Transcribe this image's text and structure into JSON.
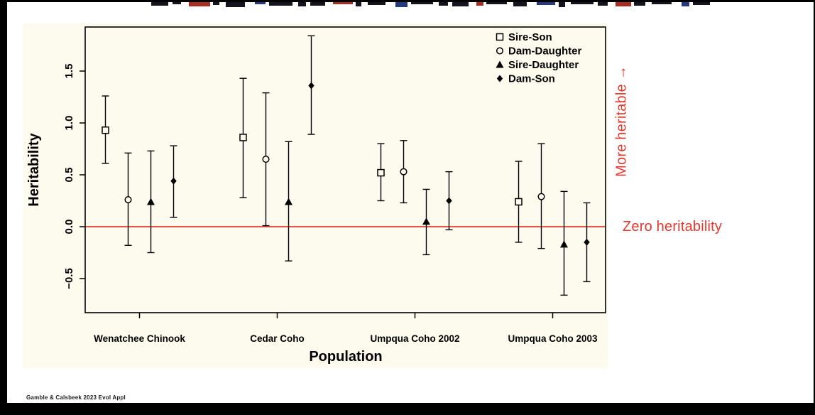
{
  "slide": {
    "citation": "Gamble & Calsbeek 2023 Evol Appl",
    "annotations": {
      "more_heritable": "More heritable →",
      "zero_heritability": "Zero heritability",
      "accent_color": "#e4392e"
    }
  },
  "chart_data": {
    "type": "scatter",
    "title": "",
    "xlabel": "Population",
    "ylabel": "Heritability",
    "ylim": [
      -0.85,
      1.92
    ],
    "yticks": [
      1.5,
      1.0,
      0.5,
      0.0,
      -0.5
    ],
    "ytick_labels": [
      "1.5",
      "1.0",
      "0.5",
      "0.0",
      "−0.5"
    ],
    "grid": false,
    "legend_position": "top-right",
    "categories": [
      "Wenatchee Chinook",
      "Cedar Coho",
      "Umpqua Coho 2002",
      "Umpqua Coho 2003"
    ],
    "reference_line": {
      "y": 0,
      "label": "Zero heritability",
      "color": "#e4392e"
    },
    "series": [
      {
        "name": "Sire-Son",
        "marker": "open-square",
        "values": [
          0.93,
          0.86,
          0.52,
          0.24
        ],
        "ci_low": [
          0.61,
          0.28,
          0.25,
          -0.15
        ],
        "ci_high": [
          1.26,
          1.43,
          0.8,
          0.63
        ]
      },
      {
        "name": "Dam-Daughter",
        "marker": "open-circle",
        "values": [
          0.26,
          0.65,
          0.53,
          0.29
        ],
        "ci_low": [
          -0.18,
          0.01,
          0.23,
          -0.21
        ],
        "ci_high": [
          0.71,
          1.29,
          0.83,
          0.8
        ]
      },
      {
        "name": "Sire-Daughter",
        "marker": "filled-triangle",
        "values": [
          0.24,
          0.24,
          0.05,
          -0.17
        ],
        "ci_low": [
          -0.25,
          -0.33,
          -0.27,
          -0.66
        ],
        "ci_high": [
          0.73,
          0.82,
          0.36,
          0.34
        ]
      },
      {
        "name": "Dam-Son",
        "marker": "filled-diamond",
        "values": [
          0.44,
          1.36,
          0.25,
          -0.15
        ],
        "ci_low": [
          0.09,
          0.89,
          -0.03,
          -0.53
        ],
        "ci_high": [
          0.78,
          1.84,
          0.53,
          0.23
        ]
      }
    ]
  }
}
